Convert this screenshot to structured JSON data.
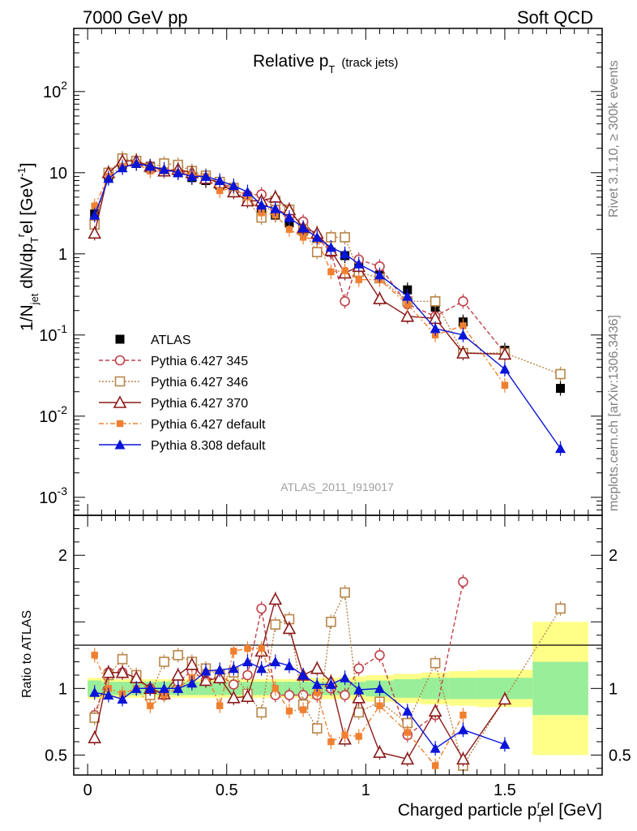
{
  "header": {
    "left": "7000 GeV pp",
    "right": "Soft QCD"
  },
  "side_labels": {
    "rivet": "Rivet 3.1.10, ≥ 300k events",
    "mcplots": "mcplots.cern.ch [arXiv:1306.3436]"
  },
  "chart_data": [
    {
      "type": "line",
      "panel": "main",
      "title": "Relative p_T (track jets)",
      "title_parts": {
        "main": "Relative p",
        "sub": "T",
        "extra": "(track jets)"
      },
      "ylabel": "1/N_jet dN/dp_T^rel [GeV^-1]",
      "ylabel_parts": {
        "a": "1/N",
        "a_sub": "jet",
        "b": " dN/dp",
        "b_sub": "T",
        "b_sup": "r",
        "c": "el [GeV",
        "c_sup": "-1",
        "d": "]"
      },
      "xlabel": "Charged particle p_T^rel [GeV]",
      "yscale": "log",
      "xlim": [
        -0.05,
        1.85
      ],
      "ylim": [
        0.0006,
        600
      ],
      "y_tick_labels": [
        "10^-3",
        "10^-2",
        "10^-1",
        "1",
        "10",
        "10^2"
      ],
      "x_tick_labels": [
        "0",
        "0.5",
        "1",
        "1.5"
      ],
      "watermark": "ATLAS_2011_I919017",
      "legend_position": "bottom-left",
      "series": [
        {
          "name": "ATLAS",
          "color": "#000000",
          "marker": "square-filled",
          "dash": "none",
          "x": [
            0.025,
            0.075,
            0.125,
            0.175,
            0.225,
            0.275,
            0.325,
            0.375,
            0.425,
            0.475,
            0.525,
            0.575,
            0.625,
            0.675,
            0.725,
            0.775,
            0.825,
            0.875,
            0.925,
            0.975,
            1.05,
            1.15,
            1.25,
            1.35,
            1.5,
            1.7
          ],
          "y": [
            3.1,
            9.0,
            12.5,
            13.0,
            12.0,
            11.0,
            10.0,
            8.7,
            8.0,
            7.0,
            6.0,
            4.8,
            3.5,
            3.0,
            2.4,
            1.9,
            1.55,
            1.05,
            0.95,
            0.75,
            0.55,
            0.36,
            0.22,
            0.145,
            0.065,
            0.022
          ]
        },
        {
          "name": "Pythia 6.427 345",
          "color": "#c0404a",
          "marker": "circle-open",
          "dash": "5,3",
          "x": [
            0.025,
            0.075,
            0.125,
            0.175,
            0.225,
            0.275,
            0.325,
            0.375,
            0.425,
            0.475,
            0.525,
            0.575,
            0.625,
            0.675,
            0.725,
            0.775,
            0.825,
            0.875,
            0.925,
            0.975,
            1.05,
            1.15,
            1.25,
            1.35,
            1.5
          ],
          "y": [
            2.5,
            10.0,
            14.0,
            14.0,
            12.0,
            10.5,
            10.5,
            9.8,
            8.5,
            7.7,
            6.2,
            5.3,
            5.4,
            3.6,
            3.0,
            2.5,
            1.6,
            1.05,
            0.26,
            0.85,
            0.7,
            0.24,
            0.17,
            0.26,
            0.06
          ]
        },
        {
          "name": "Pythia 6.427 346",
          "color": "#b8864a",
          "marker": "square-open",
          "dash": "2,2",
          "x": [
            0.025,
            0.075,
            0.125,
            0.175,
            0.225,
            0.275,
            0.325,
            0.375,
            0.425,
            0.475,
            0.525,
            0.575,
            0.625,
            0.675,
            0.725,
            0.775,
            0.825,
            0.875,
            0.925,
            0.975,
            1.05,
            1.15,
            1.25,
            1.35,
            1.5,
            1.7
          ],
          "y": [
            2.3,
            10.0,
            15.0,
            14.0,
            11.5,
            13.0,
            12.5,
            10.5,
            9.2,
            7.7,
            6.5,
            4.5,
            2.8,
            4.5,
            3.5,
            2.0,
            1.05,
            1.6,
            1.6,
            0.6,
            0.5,
            0.26,
            0.26,
            0.06,
            0.06,
            0.033
          ]
        },
        {
          "name": "Pythia 6.427 370",
          "color": "#8b1a1a",
          "marker": "triangle-open",
          "dash": "none",
          "x": [
            0.025,
            0.075,
            0.125,
            0.175,
            0.225,
            0.275,
            0.325,
            0.375,
            0.425,
            0.475,
            0.525,
            0.575,
            0.625,
            0.675,
            0.725,
            0.775,
            0.825,
            0.875,
            0.925,
            0.975,
            1.05,
            1.15,
            1.25,
            1.35,
            1.5
          ],
          "y": [
            1.8,
            10.0,
            14.0,
            14.0,
            12.0,
            10.5,
            11.0,
            10.0,
            8.5,
            7.5,
            5.8,
            4.5,
            4.5,
            5.0,
            3.5,
            2.1,
            1.8,
            1.1,
            0.58,
            0.7,
            0.28,
            0.17,
            0.16,
            0.06,
            0.058
          ]
        },
        {
          "name": "Pythia 6.427 default",
          "color": "#f08030",
          "marker": "square-filled-small",
          "dash": "6,3,2,3",
          "x": [
            0.025,
            0.075,
            0.125,
            0.175,
            0.225,
            0.275,
            0.325,
            0.375,
            0.425,
            0.475,
            0.525,
            0.575,
            0.625,
            0.675,
            0.725,
            0.775,
            0.825,
            0.875,
            0.925,
            0.975,
            1.05,
            1.15,
            1.25,
            1.35,
            1.5
          ],
          "y": [
            3.9,
            9.0,
            12.0,
            13.0,
            10.5,
            10.5,
            10.0,
            9.5,
            9.0,
            6.0,
            6.5,
            5.0,
            3.2,
            3.0,
            2.0,
            1.6,
            1.5,
            0.6,
            0.62,
            0.48,
            0.48,
            0.24,
            0.1,
            0.13,
            0.024
          ]
        },
        {
          "name": "Pythia 8.308 default",
          "color": "#0a14d8",
          "marker": "triangle-filled",
          "dash": "none",
          "x": [
            0.025,
            0.075,
            0.125,
            0.175,
            0.225,
            0.275,
            0.325,
            0.375,
            0.425,
            0.475,
            0.525,
            0.575,
            0.625,
            0.675,
            0.725,
            0.775,
            0.825,
            0.875,
            0.925,
            0.975,
            1.05,
            1.15,
            1.25,
            1.35,
            1.5,
            1.7
          ],
          "y": [
            3.0,
            8.5,
            11.5,
            13.0,
            12.0,
            11.0,
            10.0,
            9.0,
            9.0,
            8.0,
            6.9,
            5.8,
            4.0,
            3.6,
            2.8,
            2.1,
            1.6,
            1.2,
            1.0,
            0.75,
            0.55,
            0.3,
            0.12,
            0.1,
            0.038,
            0.004
          ]
        }
      ]
    },
    {
      "type": "line",
      "panel": "ratio",
      "ylabel": "Ratio to ATLAS",
      "xlabel": "Charged particle p_T^rel [GeV]",
      "ylim": [
        0.35,
        2.3
      ],
      "y_tick_labels": [
        "0.5",
        "1",
        "2"
      ],
      "x_tick_labels": [
        "0",
        "0.5",
        "1",
        "1.5"
      ],
      "uncertainty_band": {
        "x_edges": [
          0.0,
          0.05,
          0.1,
          0.15,
          0.2,
          0.25,
          0.3,
          0.35,
          0.4,
          0.45,
          0.5,
          0.55,
          0.6,
          0.65,
          0.7,
          0.75,
          0.8,
          0.85,
          0.9,
          0.95,
          1.0,
          1.1,
          1.2,
          1.3,
          1.4,
          1.6,
          1.8
        ],
        "stat_green": [
          0.06,
          0.05,
          0.05,
          0.05,
          0.05,
          0.05,
          0.05,
          0.05,
          0.05,
          0.05,
          0.05,
          0.05,
          0.05,
          0.05,
          0.05,
          0.05,
          0.05,
          0.05,
          0.05,
          0.05,
          0.06,
          0.07,
          0.08,
          0.08,
          0.08,
          0.2
        ],
        "total_yellow": [
          0.08,
          0.07,
          0.07,
          0.07,
          0.07,
          0.07,
          0.07,
          0.07,
          0.07,
          0.07,
          0.07,
          0.07,
          0.07,
          0.07,
          0.07,
          0.07,
          0.08,
          0.08,
          0.08,
          0.09,
          0.1,
          0.11,
          0.12,
          0.13,
          0.14,
          0.5
        ]
      },
      "series": [
        {
          "name": "Pythia 6.427 345",
          "color": "#c0404a",
          "marker": "circle-open",
          "dash": "5,3",
          "x": [
            0.025,
            0.075,
            0.125,
            0.175,
            0.225,
            0.275,
            0.325,
            0.375,
            0.425,
            0.475,
            0.525,
            0.575,
            0.625,
            0.675,
            0.725,
            0.775,
            0.825,
            0.875,
            0.925,
            0.975,
            1.05,
            1.15,
            1.25,
            1.35
          ],
          "y": [
            0.8,
            1.12,
            1.12,
            1.08,
            1.0,
            0.95,
            1.05,
            1.13,
            1.06,
            1.1,
            1.03,
            1.1,
            1.6,
            0.95,
            0.95,
            0.95,
            0.95,
            1.0,
            0.95,
            1.15,
            1.25,
            0.65,
            0.8,
            1.8
          ]
        },
        {
          "name": "Pythia 6.427 346",
          "color": "#b8864a",
          "marker": "square-open",
          "dash": "2,2",
          "x": [
            0.025,
            0.075,
            0.125,
            0.175,
            0.225,
            0.275,
            0.325,
            0.375,
            0.425,
            0.475,
            0.525,
            0.575,
            0.625,
            0.675,
            0.725,
            0.775,
            0.825,
            0.875,
            0.925,
            0.975,
            1.05,
            1.15,
            1.25,
            1.35,
            1.7
          ],
          "y": [
            0.78,
            1.1,
            1.22,
            1.1,
            0.95,
            1.2,
            1.25,
            1.2,
            1.15,
            1.1,
            1.12,
            0.96,
            0.82,
            1.48,
            1.52,
            0.88,
            0.7,
            1.5,
            1.72,
            0.82,
            0.9,
            0.74,
            1.19,
            0.42,
            1.6
          ]
        },
        {
          "name": "Pythia 6.427 370",
          "color": "#8b1a1a",
          "marker": "triangle-open",
          "dash": "none",
          "x": [
            0.025,
            0.075,
            0.125,
            0.175,
            0.225,
            0.275,
            0.325,
            0.375,
            0.425,
            0.475,
            0.525,
            0.575,
            0.625,
            0.675,
            0.725,
            0.775,
            0.825,
            0.875,
            0.925,
            0.975,
            1.05,
            1.15,
            1.25,
            1.35,
            1.5
          ],
          "y": [
            0.63,
            1.12,
            1.12,
            1.08,
            1.0,
            0.96,
            1.1,
            1.18,
            1.06,
            1.08,
            0.93,
            0.94,
            1.28,
            1.67,
            1.45,
            1.1,
            1.15,
            1.05,
            0.62,
            0.93,
            0.52,
            0.47,
            0.83,
            0.47,
            0.92
          ]
        },
        {
          "name": "Pythia 6.427 default",
          "color": "#f08030",
          "marker": "square-filled-small",
          "dash": "6,3,2,3",
          "x": [
            0.025,
            0.075,
            0.125,
            0.175,
            0.225,
            0.275,
            0.325,
            0.375,
            0.425,
            0.475,
            0.525,
            0.575,
            0.625,
            0.675,
            0.725,
            0.775,
            0.825,
            0.875,
            0.925,
            0.975,
            1.05,
            1.15,
            1.25,
            1.35
          ],
          "y": [
            1.25,
            1.0,
            0.96,
            1.0,
            0.87,
            0.95,
            1.0,
            1.08,
            1.12,
            0.87,
            1.28,
            1.3,
            1.3,
            1.0,
            0.83,
            0.84,
            0.97,
            0.6,
            0.65,
            0.64,
            0.87,
            0.67,
            0.42,
            0.8
          ]
        },
        {
          "name": "Pythia 8.308 default",
          "color": "#0a14d8",
          "marker": "triangle-filled",
          "dash": "none",
          "x": [
            0.025,
            0.075,
            0.125,
            0.175,
            0.225,
            0.275,
            0.325,
            0.375,
            0.425,
            0.475,
            0.525,
            0.575,
            0.625,
            0.675,
            0.725,
            0.775,
            0.825,
            0.875,
            0.925,
            0.975,
            1.05,
            1.15,
            1.25,
            1.35,
            1.5
          ],
          "y": [
            0.97,
            0.95,
            0.92,
            1.0,
            1.0,
            1.0,
            1.0,
            1.04,
            1.13,
            1.14,
            1.15,
            1.2,
            1.15,
            1.2,
            1.17,
            1.1,
            1.03,
            1.03,
            1.08,
            0.99,
            1.0,
            0.83,
            0.55,
            0.69,
            0.58
          ]
        }
      ]
    }
  ]
}
